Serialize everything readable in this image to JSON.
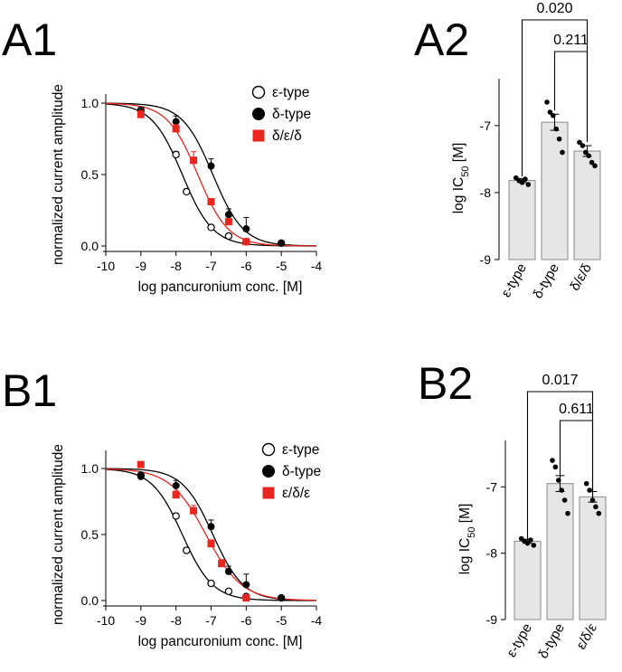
{
  "panels": {
    "a1": "A1",
    "a2": "A2",
    "b1": "B1",
    "b2": "B2"
  },
  "colors": {
    "epsilon": "#000000",
    "delta": "#000000",
    "mix": "#e8251f",
    "bar_fill": "#e6e6e6",
    "bar_stroke": "#8a8a8a"
  },
  "chart_data": [
    {
      "id": "A1",
      "type": "scatter",
      "xlabel": "log pancuronium conc. [M]",
      "ylabel": "normalized current amplitude",
      "xlim": [
        -10,
        -4
      ],
      "ylim": [
        0,
        1
      ],
      "xticks": [
        "-10",
        "-9",
        "-8",
        "-7",
        "-6",
        "-5",
        "-4"
      ],
      "yticks": [
        "0.0",
        "0.5",
        "1.0"
      ],
      "legend_position": "top-right",
      "series": [
        {
          "name": "ε-type",
          "marker": "open-circle",
          "logIC50": -7.82,
          "hill": 1.0,
          "points": [
            {
              "x": -9,
              "y": 0.95,
              "err": 0
            },
            {
              "x": -8,
              "y": 0.64,
              "err": 0.02
            },
            {
              "x": -7.7,
              "y": 0.38,
              "err": 0.02
            },
            {
              "x": -7,
              "y": 0.13,
              "err": 0.02
            },
            {
              "x": -6.5,
              "y": 0.07,
              "err": 0.01
            },
            {
              "x": -6,
              "y": 0.03,
              "err": 0
            },
            {
              "x": -5,
              "y": 0.02,
              "err": 0
            }
          ]
        },
        {
          "name": "δ-type",
          "marker": "filled-circle",
          "logIC50": -6.95,
          "hill": 1.0,
          "points": [
            {
              "x": -9,
              "y": 0.94,
              "err": 0.03
            },
            {
              "x": -8,
              "y": 0.87,
              "err": 0.04
            },
            {
              "x": -7,
              "y": 0.56,
              "err": 0.05
            },
            {
              "x": -6.5,
              "y": 0.22,
              "err": 0.04
            },
            {
              "x": -6,
              "y": 0.12,
              "err": 0.08
            },
            {
              "x": -5,
              "y": 0.02,
              "err": 0
            }
          ]
        },
        {
          "name": "δ/ε/δ",
          "marker": "filled-square",
          "logIC50": -7.38,
          "hill": 1.0,
          "points": [
            {
              "x": -9,
              "y": 0.92,
              "err": 0.03
            },
            {
              "x": -8,
              "y": 0.82,
              "err": 0.03
            },
            {
              "x": -7.5,
              "y": 0.6,
              "err": 0.06
            },
            {
              "x": -7,
              "y": 0.31,
              "err": 0.02
            },
            {
              "x": -6.5,
              "y": 0.17,
              "err": 0.02
            },
            {
              "x": -6,
              "y": 0.03,
              "err": 0
            }
          ]
        }
      ]
    },
    {
      "id": "A2",
      "type": "bar",
      "ylabel": "log IC50 [M]",
      "ylim": [
        -9,
        -6.3
      ],
      "yticks": [
        "-9",
        "-8",
        "-7"
      ],
      "categories": [
        "ε-type",
        "δ-type",
        "δ/ε/δ"
      ],
      "values": [
        -7.82,
        -6.95,
        -7.38
      ],
      "errors": [
        0.03,
        0.12,
        0.08
      ],
      "points": [
        [
          -7.78,
          -7.82,
          -7.85,
          -7.8,
          -7.88
        ],
        [
          -6.65,
          -6.8,
          -6.85,
          -7.05,
          -7.2,
          -7.4
        ],
        [
          -7.25,
          -7.3,
          -7.4,
          -7.45,
          -7.55,
          -7.6
        ]
      ],
      "brackets": [
        {
          "from": 0,
          "to": 2,
          "label": "0.020"
        },
        {
          "from": 1,
          "to": 2,
          "label": "0.211"
        }
      ]
    },
    {
      "id": "B1",
      "type": "scatter",
      "xlabel": "log pancuronium conc. [M]",
      "ylabel": "normalized current amplitude",
      "xlim": [
        -10,
        -4
      ],
      "ylim": [
        0,
        1
      ],
      "xticks": [
        "-10",
        "-9",
        "-8",
        "-7",
        "-6",
        "-5",
        "-4"
      ],
      "yticks": [
        "0.0",
        "0.5",
        "1.0"
      ],
      "legend_position": "top-right",
      "series": [
        {
          "name": "ε-type",
          "marker": "open-circle",
          "logIC50": -7.82,
          "hill": 1.0,
          "points": [
            {
              "x": -9,
              "y": 0.95,
              "err": 0
            },
            {
              "x": -8,
              "y": 0.64,
              "err": 0.02
            },
            {
              "x": -7.7,
              "y": 0.38,
              "err": 0.02
            },
            {
              "x": -7,
              "y": 0.13,
              "err": 0.02
            },
            {
              "x": -6.5,
              "y": 0.07,
              "err": 0.01
            },
            {
              "x": -6,
              "y": 0.03,
              "err": 0
            },
            {
              "x": -5,
              "y": 0.02,
              "err": 0
            }
          ]
        },
        {
          "name": "δ-type",
          "marker": "filled-circle",
          "logIC50": -6.95,
          "hill": 1.0,
          "points": [
            {
              "x": -9,
              "y": 0.94,
              "err": 0.03
            },
            {
              "x": -8,
              "y": 0.87,
              "err": 0.04
            },
            {
              "x": -7,
              "y": 0.56,
              "err": 0.05
            },
            {
              "x": -6.5,
              "y": 0.22,
              "err": 0.04
            },
            {
              "x": -6,
              "y": 0.12,
              "err": 0.08
            },
            {
              "x": -5,
              "y": 0.02,
              "err": 0
            }
          ]
        },
        {
          "name": "ε/δ/ε",
          "marker": "filled-square",
          "logIC50": -7.15,
          "hill": 0.85,
          "points": [
            {
              "x": -9,
              "y": 1.03,
              "err": 0
            },
            {
              "x": -8,
              "y": 0.8,
              "err": 0.03
            },
            {
              "x": -7.5,
              "y": 0.68,
              "err": 0.04
            },
            {
              "x": -7,
              "y": 0.43,
              "err": 0.03
            },
            {
              "x": -6.7,
              "y": 0.28,
              "err": 0.03
            },
            {
              "x": -6,
              "y": 0.02,
              "err": 0
            }
          ]
        }
      ]
    },
    {
      "id": "B2",
      "type": "bar",
      "ylabel": "log IC50 [M]",
      "ylim": [
        -9,
        -6.3
      ],
      "yticks": [
        "-9",
        "-8",
        "-7"
      ],
      "categories": [
        "ε-type",
        "δ-type",
        "ε/δ/ε"
      ],
      "values": [
        -7.82,
        -6.95,
        -7.15
      ],
      "errors": [
        0.03,
        0.12,
        0.08
      ],
      "points": [
        [
          -7.78,
          -7.82,
          -7.85,
          -7.8,
          -7.88
        ],
        [
          -6.6,
          -6.7,
          -6.9,
          -7.05,
          -7.2,
          -7.4
        ],
        [
          -6.95,
          -7.05,
          -7.2,
          -7.3,
          -7.4
        ]
      ],
      "brackets": [
        {
          "from": 0,
          "to": 2,
          "label": "0.017"
        },
        {
          "from": 1,
          "to": 2,
          "label": "0.611"
        }
      ]
    }
  ]
}
